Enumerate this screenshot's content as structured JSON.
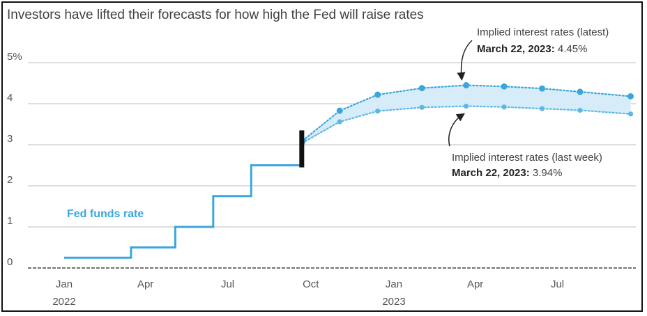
{
  "colors": {
    "fed_line": "#3aa6dd",
    "latest": "#3aa6dd",
    "last_week": "#5db7e6",
    "band_fill": "#d6ecf8",
    "grid": "#bfbfbf",
    "marker": "#111111"
  },
  "chart_data": {
    "type": "line",
    "title": "Investors have lifted their forecasts for how high the Fed will raise rates",
    "xlabel": "",
    "ylabel": "",
    "ylim": [
      0,
      5
    ],
    "y_ticks": [
      "0",
      "1",
      "2",
      "3",
      "4",
      "5%"
    ],
    "x_ticks": [
      {
        "label": "Jan",
        "sub": "2022",
        "date": "2022-01"
      },
      {
        "label": "Apr",
        "sub": "",
        "date": "2022-04"
      },
      {
        "label": "Jul",
        "sub": "",
        "date": "2022-07"
      },
      {
        "label": "Oct",
        "sub": "",
        "date": "2022-10"
      },
      {
        "label": "Jan",
        "sub": "2023",
        "date": "2023-01"
      },
      {
        "label": "Apr",
        "sub": "",
        "date": "2023-04"
      },
      {
        "label": "Jul",
        "sub": "",
        "date": "2023-07"
      }
    ],
    "grid": true,
    "series": [
      {
        "name": "Fed funds rate",
        "style": "step",
        "points": [
          [
            "2022-01-01",
            0.25
          ],
          [
            "2022-03-16",
            0.25
          ],
          [
            "2022-03-16",
            0.5
          ],
          [
            "2022-05-04",
            0.5
          ],
          [
            "2022-05-04",
            1.0
          ],
          [
            "2022-06-15",
            1.0
          ],
          [
            "2022-06-15",
            1.75
          ],
          [
            "2022-07-27",
            1.75
          ],
          [
            "2022-07-27",
            2.5
          ],
          [
            "2022-09-21",
            2.5
          ]
        ]
      },
      {
        "name": "Implied interest rates (latest)",
        "style": "dotted",
        "points": [
          [
            "2022-09-22",
            3.1
          ],
          [
            "2022-11-02",
            3.83
          ],
          [
            "2022-12-14",
            4.22
          ],
          [
            "2023-02-01",
            4.38
          ],
          [
            "2023-03-22",
            4.45
          ],
          [
            "2023-05-03",
            4.42
          ],
          [
            "2023-06-14",
            4.37
          ],
          [
            "2023-07-26",
            4.29
          ],
          [
            "2023-09-20",
            4.18
          ]
        ]
      },
      {
        "name": "Implied interest rates (last week)",
        "style": "dotted",
        "points": [
          [
            "2022-09-22",
            3.05
          ],
          [
            "2022-11-02",
            3.56
          ],
          [
            "2022-12-14",
            3.82
          ],
          [
            "2023-02-01",
            3.91
          ],
          [
            "2023-03-22",
            3.94
          ],
          [
            "2023-05-03",
            3.92
          ],
          [
            "2023-06-14",
            3.88
          ],
          [
            "2023-07-26",
            3.84
          ],
          [
            "2023-09-20",
            3.75
          ]
        ]
      }
    ],
    "marker": {
      "date": "2022-09-21",
      "y_from": 2.45,
      "y_to": 3.35
    },
    "annotations": {
      "latest": {
        "line1": "Implied interest rates (latest)",
        "date": "March 22, 2023:",
        "value": " 4.45%"
      },
      "last_week": {
        "line1": "Implied interest rates (last week)",
        "date": "March 22, 2023:",
        "value": " 3.94%"
      },
      "fed_label": "Fed funds rate"
    }
  }
}
